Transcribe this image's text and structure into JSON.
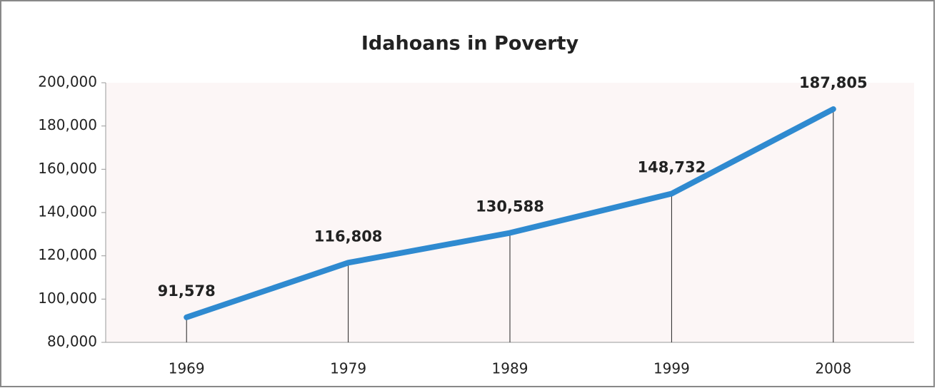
{
  "chart_data": {
    "type": "line",
    "title": "Idahoans in Poverty",
    "categories": [
      "1969",
      "1979",
      "1989",
      "1999",
      "2008"
    ],
    "values": [
      91578,
      116808,
      130588,
      148732,
      187805
    ],
    "value_labels": [
      "91,578",
      "116,808",
      "130,588",
      "148,732",
      "187,805"
    ],
    "color": "#2f8ad0",
    "ylim": [
      80000,
      200000
    ],
    "yticks": [
      {
        "value": 80000,
        "label": "80,000"
      },
      {
        "value": 100000,
        "label": "100,000"
      },
      {
        "value": 120000,
        "label": "120,000"
      },
      {
        "value": 140000,
        "label": "140,000"
      },
      {
        "value": 160000,
        "label": "160,000"
      },
      {
        "value": 180000,
        "label": "180,000"
      },
      {
        "value": 200000,
        "label": "200,000"
      }
    ],
    "grid": false,
    "drop_lines": true
  }
}
